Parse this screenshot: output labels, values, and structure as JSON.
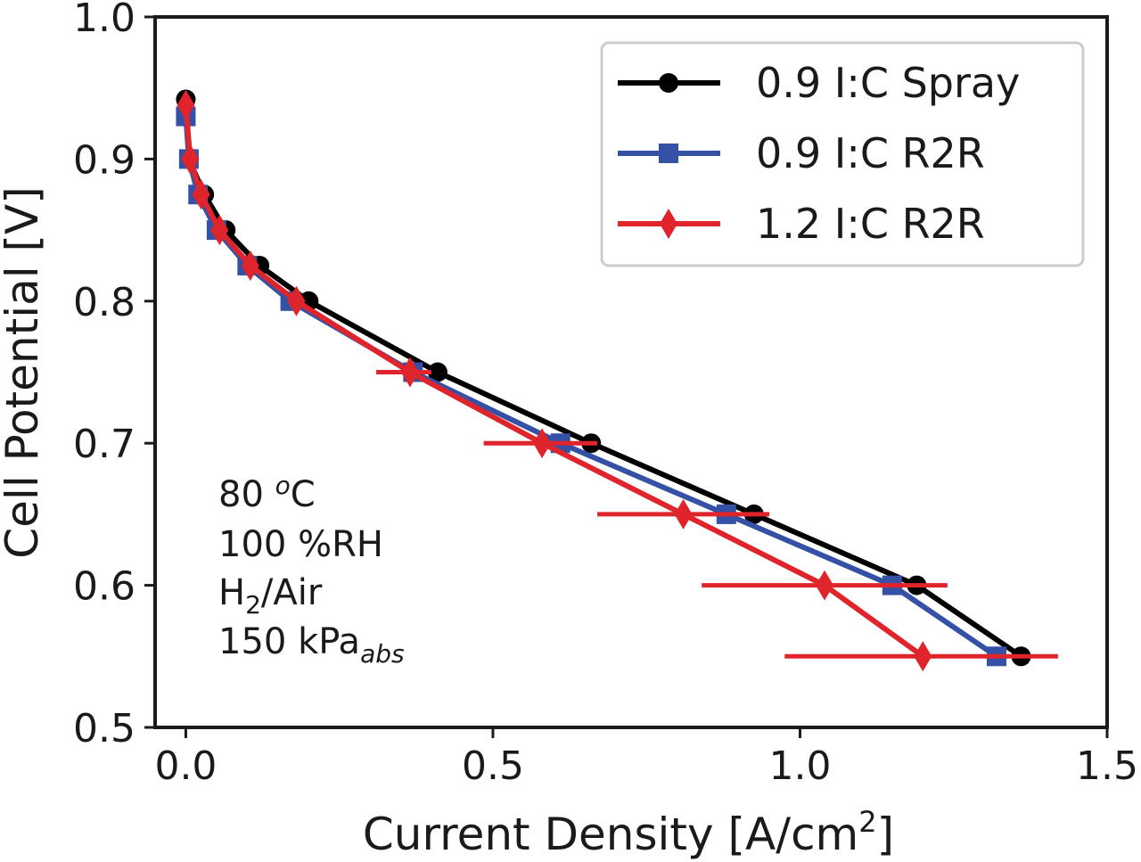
{
  "chart_data": {
    "type": "line",
    "title": "",
    "xlabel": "Current Density [A/cm",
    "xlabel_sup": "2",
    "xlabel_end": "]",
    "ylabel": "Cell Potential [V]",
    "xlim": [
      -0.05,
      1.5
    ],
    "ylim": [
      0.5,
      1.0
    ],
    "xticks": [
      0.0,
      0.5,
      1.0,
      1.5
    ],
    "xtick_labels": [
      "0.0",
      "0.5",
      "1.0",
      "1.5"
    ],
    "yticks": [
      0.5,
      0.6,
      0.7,
      0.8,
      0.9,
      1.0
    ],
    "ytick_labels": [
      "0.5",
      "0.6",
      "0.7",
      "0.8",
      "0.9",
      "1.0"
    ],
    "grid": false,
    "legend_position": "top-right",
    "series": [
      {
        "name": "0.9 I:C Spray",
        "color": "#000000",
        "marker": "circle",
        "points": [
          {
            "x": 0.0,
            "y": 0.942
          },
          {
            "x": 0.005,
            "y": 0.9
          },
          {
            "x": 0.03,
            "y": 0.875
          },
          {
            "x": 0.065,
            "y": 0.85
          },
          {
            "x": 0.12,
            "y": 0.825
          },
          {
            "x": 0.2,
            "y": 0.8
          },
          {
            "x": 0.41,
            "y": 0.75
          },
          {
            "x": 0.66,
            "y": 0.7
          },
          {
            "x": 0.925,
            "y": 0.65
          },
          {
            "x": 1.19,
            "y": 0.6
          },
          {
            "x": 1.36,
            "y": 0.55
          }
        ]
      },
      {
        "name": "0.9 I:C R2R",
        "color": "#3451a5",
        "marker": "square",
        "points": [
          {
            "x": 0.0,
            "y": 0.93
          },
          {
            "x": 0.005,
            "y": 0.9
          },
          {
            "x": 0.02,
            "y": 0.875
          },
          {
            "x": 0.05,
            "y": 0.85
          },
          {
            "x": 0.1,
            "y": 0.825
          },
          {
            "x": 0.17,
            "y": 0.8
          },
          {
            "x": 0.37,
            "y": 0.75
          },
          {
            "x": 0.61,
            "y": 0.7
          },
          {
            "x": 0.88,
            "y": 0.65
          },
          {
            "x": 1.15,
            "y": 0.6
          },
          {
            "x": 1.32,
            "y": 0.55
          }
        ]
      },
      {
        "name": "1.2 I:C R2R",
        "color": "#e0242b",
        "marker": "diamond",
        "points": [
          {
            "x": 0.0,
            "y": 0.938
          },
          {
            "x": 0.007,
            "y": 0.9
          },
          {
            "x": 0.025,
            "y": 0.875
          },
          {
            "x": 0.055,
            "y": 0.85
          },
          {
            "x": 0.105,
            "y": 0.825
          },
          {
            "x": 0.18,
            "y": 0.8
          },
          {
            "x": 0.365,
            "y": 0.75,
            "xerr": [
              0.31,
              0.4
            ]
          },
          {
            "x": 0.58,
            "y": 0.7,
            "xerr": [
              0.485,
              0.67
            ]
          },
          {
            "x": 0.81,
            "y": 0.65,
            "xerr": [
              0.67,
              0.95
            ]
          },
          {
            "x": 1.04,
            "y": 0.6,
            "xerr": [
              0.84,
              1.24
            ]
          },
          {
            "x": 1.2,
            "y": 0.55,
            "xerr": [
              0.975,
              1.42
            ]
          }
        ]
      }
    ],
    "annotations": {
      "line1_pre": "80 ",
      "line1_sup": "o",
      "line1_post": "C",
      "line2": "100 %RH",
      "line3_pre": "H",
      "line3_sub": "2",
      "line3_post": "/Air",
      "line4_pre": "150 kPa",
      "line4_sub": "abs"
    }
  }
}
